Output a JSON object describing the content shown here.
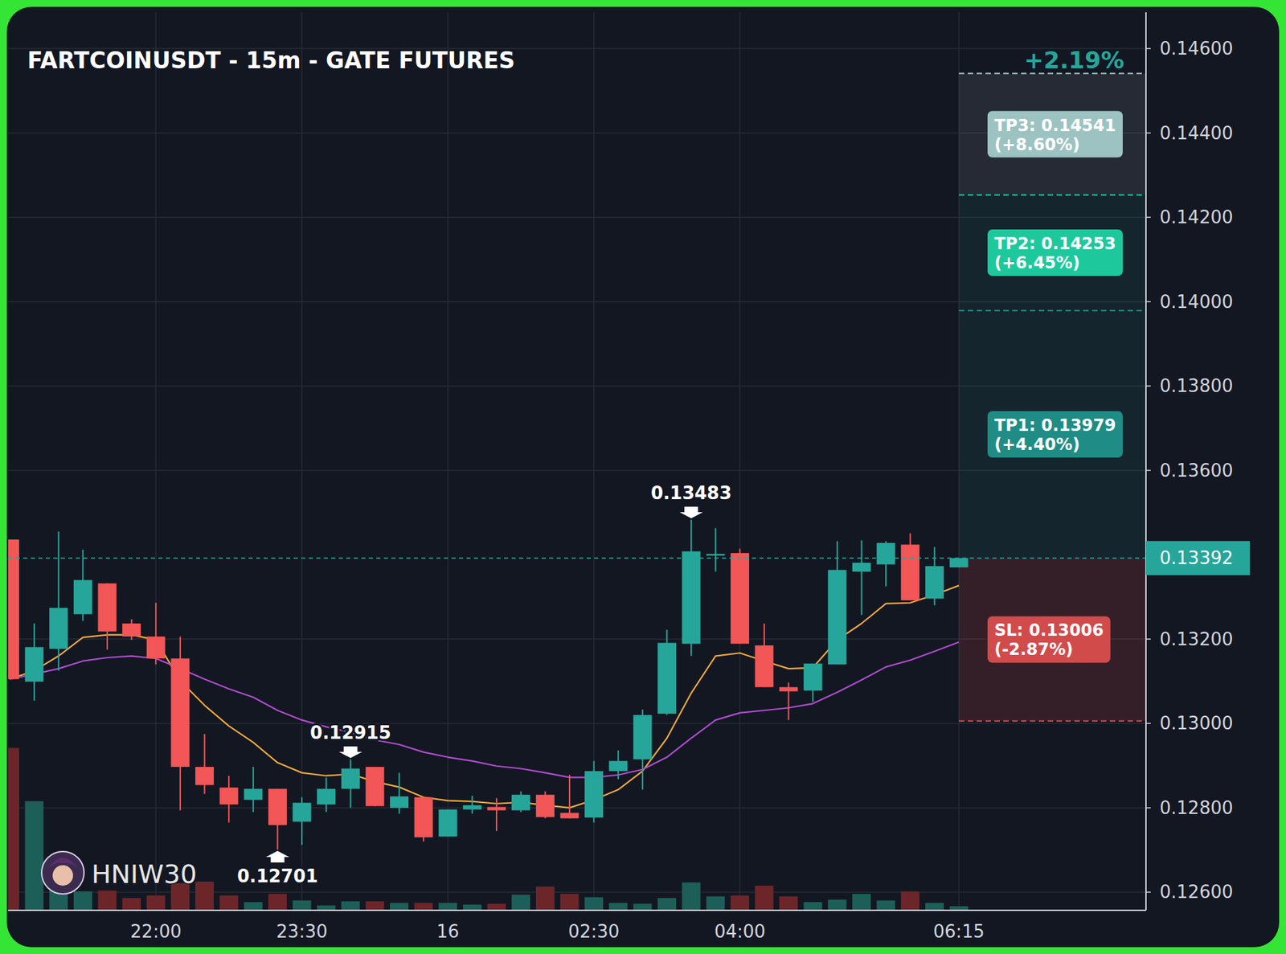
{
  "chart_data": {
    "type": "candlestick",
    "title": "FARTCOINUSDT - 15m - GATE FUTURES",
    "categories": [
      null,
      null,
      null,
      null,
      null,
      null,
      "22:00",
      null,
      null,
      null,
      null,
      null,
      "23:30",
      null,
      null,
      null,
      null,
      null,
      "16",
      null,
      null,
      null,
      null,
      null,
      "02:30",
      null,
      null,
      null,
      null,
      null,
      "04:00",
      null,
      null,
      null,
      null,
      null,
      null,
      null,
      null,
      "06:15"
    ],
    "xlim": [
      -0.07,
      46.69
    ],
    "ylim": [
      0.12557,
      0.14686
    ],
    "yticks": [
      {
        "value": 0.126,
        "label": "0.12600"
      },
      {
        "value": 0.128,
        "label": "0.12800"
      },
      {
        "value": 0.13,
        "label": "0.13000"
      },
      {
        "value": 0.132,
        "label": "0.13200"
      },
      {
        "value": 0.136,
        "label": "0.13600"
      },
      {
        "value": 0.138,
        "label": "0.13800"
      },
      {
        "value": 0.14,
        "label": "0.14000"
      },
      {
        "value": 0.142,
        "label": "0.14200"
      },
      {
        "value": 0.144,
        "label": "0.14400"
      },
      {
        "value": 0.146,
        "label": "0.14600"
      }
    ],
    "y2lim": [
      0,
      1095
    ],
    "grid": true,
    "series": [
      {
        "type": "candlestick",
        "open": [
          0.13436,
          0.13099,
          0.13177,
          0.13259,
          0.13332,
          0.13237,
          0.13206,
          0.13154,
          0.12897,
          0.12848,
          0.12819,
          0.12845,
          0.12767,
          0.12808,
          0.12845,
          0.12897,
          0.128,
          0.12825,
          0.12732,
          0.12796,
          0.12802,
          0.12794,
          0.12831,
          0.12788,
          0.12777,
          0.12887,
          0.12915,
          0.13023,
          0.13189,
          0.13398,
          0.13404,
          0.13185,
          0.13086,
          0.13078,
          0.1314,
          0.1336,
          0.13377,
          0.13424,
          0.13296,
          0.1337
        ],
        "high": [
          0.13436,
          0.13237,
          0.13455,
          0.13412,
          0.13332,
          0.13247,
          0.13286,
          0.13206,
          0.12975,
          0.12876,
          0.12897,
          0.12845,
          0.12825,
          0.12872,
          0.12915,
          0.12897,
          0.12883,
          0.12825,
          0.12796,
          0.12829,
          0.12823,
          0.12839,
          0.12839,
          0.12878,
          0.12911,
          0.12936,
          0.13033,
          0.13222,
          0.13483,
          0.13463,
          0.13414,
          0.13237,
          0.13097,
          0.13142,
          0.13432,
          0.13434,
          0.13432,
          0.13451,
          0.13418,
          0.13392
        ],
        "low": [
          0.13105,
          0.13054,
          0.13125,
          0.13243,
          0.13175,
          0.13198,
          0.1314,
          0.12794,
          0.12833,
          0.12765,
          0.1279,
          0.12701,
          0.12712,
          0.1279,
          0.128,
          0.12804,
          0.12786,
          0.1272,
          0.12732,
          0.12786,
          0.12745,
          0.1279,
          0.12775,
          0.12775,
          0.12765,
          0.12868,
          0.12843,
          0.1302,
          0.1316,
          0.1336,
          0.13189,
          0.13086,
          0.13008,
          0.13051,
          0.1314,
          0.13257,
          0.13325,
          0.13292,
          0.1328,
          0.1337
        ],
        "close": [
          0.13105,
          0.13181,
          0.13274,
          0.1334,
          0.13218,
          0.13206,
          0.13154,
          0.12897,
          0.12854,
          0.12808,
          0.12845,
          0.12759,
          0.12812,
          0.12845,
          0.12893,
          0.12804,
          0.12827,
          0.1273,
          0.12796,
          0.12806,
          0.12794,
          0.12831,
          0.12778,
          0.12775,
          0.12887,
          0.12911,
          0.1302,
          0.13191,
          0.13408,
          0.13402,
          0.13189,
          0.13086,
          0.13076,
          0.13142,
          0.13364,
          0.13381,
          0.13428,
          0.13292,
          0.13373,
          0.13392
        ]
      },
      {
        "type": "line",
        "color": "#f2a93b",
        "values": [
          0.13105,
          0.13125,
          0.1316,
          0.13204,
          0.1321,
          0.1321,
          0.13198,
          0.13101,
          0.13043,
          0.12994,
          0.12955,
          0.12907,
          0.12883,
          0.12876,
          0.1288,
          0.12862,
          0.12849,
          0.12825,
          0.12817,
          0.12815,
          0.1281,
          0.12813,
          0.12806,
          0.128,
          0.12819,
          0.12843,
          0.12887,
          0.12965,
          0.13072,
          0.1316,
          0.13167,
          0.13148,
          0.1313,
          0.13132,
          0.13198,
          0.13237,
          0.13284,
          0.13286,
          0.13305,
          0.13327
        ]
      },
      {
        "type": "line",
        "color": "#b14ccf",
        "values": [
          0.13105,
          0.13117,
          0.1313,
          0.13148,
          0.13156,
          0.1316,
          0.13154,
          0.1313,
          0.13105,
          0.13082,
          0.13062,
          0.13031,
          0.13008,
          0.12992,
          0.12979,
          0.12961,
          0.1295,
          0.12932,
          0.1292,
          0.12911,
          0.12899,
          0.12893,
          0.12883,
          0.12872,
          0.12872,
          0.12878,
          0.12891,
          0.1292,
          0.12965,
          0.13008,
          0.13025,
          0.13031,
          0.13037,
          0.13047,
          0.13074,
          0.13103,
          0.13134,
          0.1315,
          0.13171,
          0.13193
        ]
      },
      {
        "type": "bar",
        "axis": "y2",
        "values": [
          198,
          133,
          25,
          23,
          24,
          15,
          18,
          33,
          35,
          18,
          10,
          20,
          12,
          6,
          11,
          11,
          9,
          9,
          9,
          7,
          8,
          19,
          29,
          20,
          16,
          9,
          8,
          15,
          34,
          17,
          18,
          30,
          17,
          10,
          13,
          20,
          12,
          23,
          9,
          5
        ]
      }
    ],
    "annotations": [
      {
        "text": "0.13483",
        "x": 28,
        "y": 0.13483,
        "position": "above"
      },
      {
        "text": "0.12915",
        "x": 14,
        "y": 0.12915,
        "position": "above"
      },
      {
        "text": "0.12701",
        "x": 11,
        "y": 0.12701,
        "position": "below"
      }
    ],
    "last_price": {
      "value": 0.13392,
      "label": "0.13392"
    },
    "trade": {
      "change_label": "+2.19%",
      "levels": [
        {
          "label": "TP3: 0.14541",
          "sub_label": "(+8.60%)",
          "value": 0.14541,
          "color": "#9cc3c1"
        },
        {
          "label": "TP2: 0.14253",
          "sub_label": "(+6.45%)",
          "value": 0.14253,
          "color": "#1dc99c"
        },
        {
          "label": "TP1: 0.13979",
          "sub_label": "(+4.40%)",
          "value": 0.13979,
          "color": "#1f8d85"
        },
        {
          "label": "SL: 0.13006",
          "sub_label": "(-2.87%)",
          "value": 0.13006,
          "color": "#d24b4b"
        }
      ]
    },
    "watermark": "HNIW30"
  }
}
